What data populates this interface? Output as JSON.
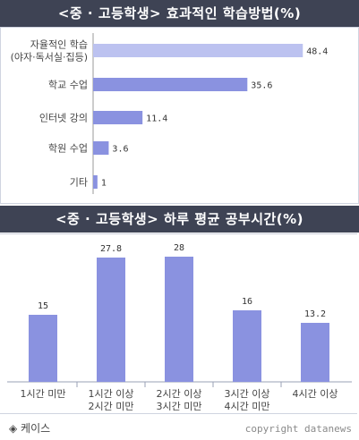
{
  "chart1_title": "<중 · 고등학생> 효과적인 학습방법(%)",
  "chart2_title": "<중 · 고등학생> 하루 평균 공부시간(%)",
  "source": "◈ 케이스",
  "copyright": "copyright datanews",
  "colors": {
    "bar": "#8a92e0",
    "bar_light": "#bcc2f0",
    "header": "#3e4354"
  },
  "chart_data": [
    {
      "type": "bar",
      "orientation": "horizontal",
      "title": "<중 · 고등학생> 효과적인 학습방법(%)",
      "categories": [
        [
          "자율적인 학습",
          "(야자·독서실·집등)"
        ],
        [
          "학교 수업"
        ],
        [
          "인터넷 강의"
        ],
        [
          "학원 수업"
        ],
        [
          "기타"
        ]
      ],
      "values": [
        48.4,
        35.6,
        11.4,
        3.6,
        1
      ],
      "value_labels": [
        "48.4",
        "35.6",
        "11.4",
        "3.6",
        "1"
      ],
      "xlim": [
        0,
        50
      ],
      "grid": false
    },
    {
      "type": "bar",
      "orientation": "vertical",
      "title": "<중 · 고등학생> 하루 평균 공부시간(%)",
      "categories": [
        [
          "1시간 미만"
        ],
        [
          "1시간 이상",
          "2시간 미만"
        ],
        [
          "2시간 이상",
          "3시간 미만"
        ],
        [
          "3시간 이상",
          "4시간 미만"
        ],
        [
          "4시간 이상"
        ]
      ],
      "values": [
        15,
        27.8,
        28,
        16,
        13.2
      ],
      "value_labels": [
        "15",
        "27.8",
        "28",
        "16",
        "13.2"
      ],
      "ylim": [
        0,
        30
      ],
      "grid": false
    }
  ]
}
